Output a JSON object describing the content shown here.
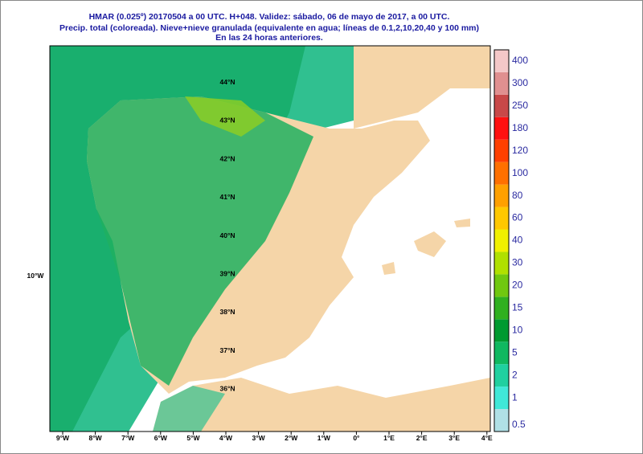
{
  "header": {
    "lines": [
      "HMAR (0.025º) 20170504 a 00 UTC.  H+048. Validez: sábado, 06 de mayo de 2017,  a  00 UTC.",
      "Precip. total (coloreada). Nieve+nieve granulada (equivalente en agua; líneas de 0.1,2,10,20,40 y 100 mm)",
      "En las 24 horas anteriores."
    ]
  },
  "map": {
    "lon_labels": [
      "9°W",
      "8°W",
      "7°W",
      "6°W",
      "5°W",
      "4°W",
      "3°W",
      "2°W",
      "1°W",
      "0°",
      "1°E",
      "2°E",
      "3°E",
      "4°E"
    ],
    "lat_labels": [
      "44°N",
      "43°N",
      "42°N",
      "41°N",
      "40°N",
      "39°N",
      "38°N",
      "37°N",
      "36°N"
    ],
    "side_label": "10°W"
  },
  "legend": {
    "items": [
      {
        "value": 0.5,
        "color": "#b0e0e6"
      },
      {
        "value": 1,
        "color": "#40e8d8"
      },
      {
        "value": 2,
        "color": "#20d0a0"
      },
      {
        "value": 5,
        "color": "#10b860"
      },
      {
        "value": 10,
        "color": "#009a30"
      },
      {
        "value": 15,
        "color": "#30b020"
      },
      {
        "value": 20,
        "color": "#70c810"
      },
      {
        "value": 30,
        "color": "#b0e000"
      },
      {
        "value": 40,
        "color": "#f0f000"
      },
      {
        "value": 60,
        "color": "#ffc800"
      },
      {
        "value": 80,
        "color": "#ffa000"
      },
      {
        "value": 100,
        "color": "#ff7000"
      },
      {
        "value": 120,
        "color": "#ff4000"
      },
      {
        "value": 180,
        "color": "#ff1010"
      },
      {
        "value": 250,
        "color": "#c84848"
      },
      {
        "value": 300,
        "color": "#e09090"
      },
      {
        "value": 400,
        "color": "#f4c8c8"
      }
    ]
  }
}
